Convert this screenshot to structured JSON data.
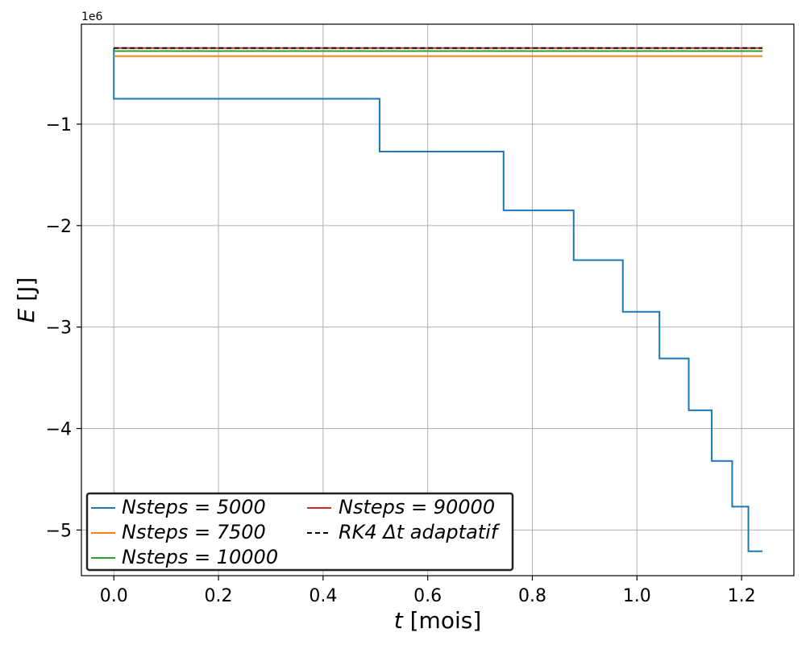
{
  "chart_data": {
    "type": "line",
    "title": "",
    "xlabel": {
      "var": "t",
      "unit": "[mois]"
    },
    "ylabel": {
      "var": "E",
      "unit": "[J]"
    },
    "y_offset_label": "1e6",
    "xlim": [
      -0.062,
      1.3
    ],
    "ylim": [
      -5.45,
      -0.015
    ],
    "x_ticks": [
      0.0,
      0.2,
      0.4,
      0.6,
      0.8,
      1.0,
      1.2
    ],
    "x_tick_labels": [
      "0.0",
      "0.2",
      "0.4",
      "0.6",
      "0.8",
      "1.0",
      "1.2"
    ],
    "y_ticks": [
      -1,
      -2,
      -3,
      -4,
      -5
    ],
    "y_tick_labels": [
      "−1",
      "−2",
      "−3",
      "−4",
      "−5"
    ],
    "grid": true,
    "legend_position": "lower-left",
    "colors": {
      "blue": "#1f77b4",
      "orange": "#ff7f0e",
      "green": "#2ca02c",
      "red": "#d62728",
      "black": "#000000"
    },
    "series": [
      {
        "name": "Nsteps = 5000",
        "color": "#1f77b4",
        "style": "solid",
        "step": true,
        "x": [
          0.0,
          0.0,
          0.508,
          0.745,
          0.879,
          0.973,
          1.043,
          1.099,
          1.143,
          1.182,
          1.213,
          1.24
        ],
        "y": [
          -0.25,
          -0.75,
          -1.27,
          -1.85,
          -2.34,
          -2.85,
          -3.31,
          -3.82,
          -4.32,
          -4.77,
          -5.21,
          -5.21
        ]
      },
      {
        "name": "Nsteps = 7500",
        "color": "#ff7f0e",
        "style": "solid",
        "step": false,
        "x": [
          0.0,
          1.24
        ],
        "y": [
          -0.33,
          -0.33
        ]
      },
      {
        "name": "Nsteps = 10000",
        "color": "#2ca02c",
        "style": "solid",
        "step": false,
        "x": [
          0.0,
          1.24
        ],
        "y": [
          -0.28,
          -0.28
        ]
      },
      {
        "name": "Nsteps = 90000",
        "color": "#d62728",
        "style": "solid",
        "step": false,
        "x": [
          0.0,
          1.24
        ],
        "y": [
          -0.25,
          -0.25
        ]
      },
      {
        "name": "RK4 Δt adaptatif",
        "color": "#000000",
        "style": "dashed",
        "step": false,
        "x": [
          0.0,
          1.24
        ],
        "y": [
          -0.25,
          -0.25
        ]
      }
    ]
  }
}
